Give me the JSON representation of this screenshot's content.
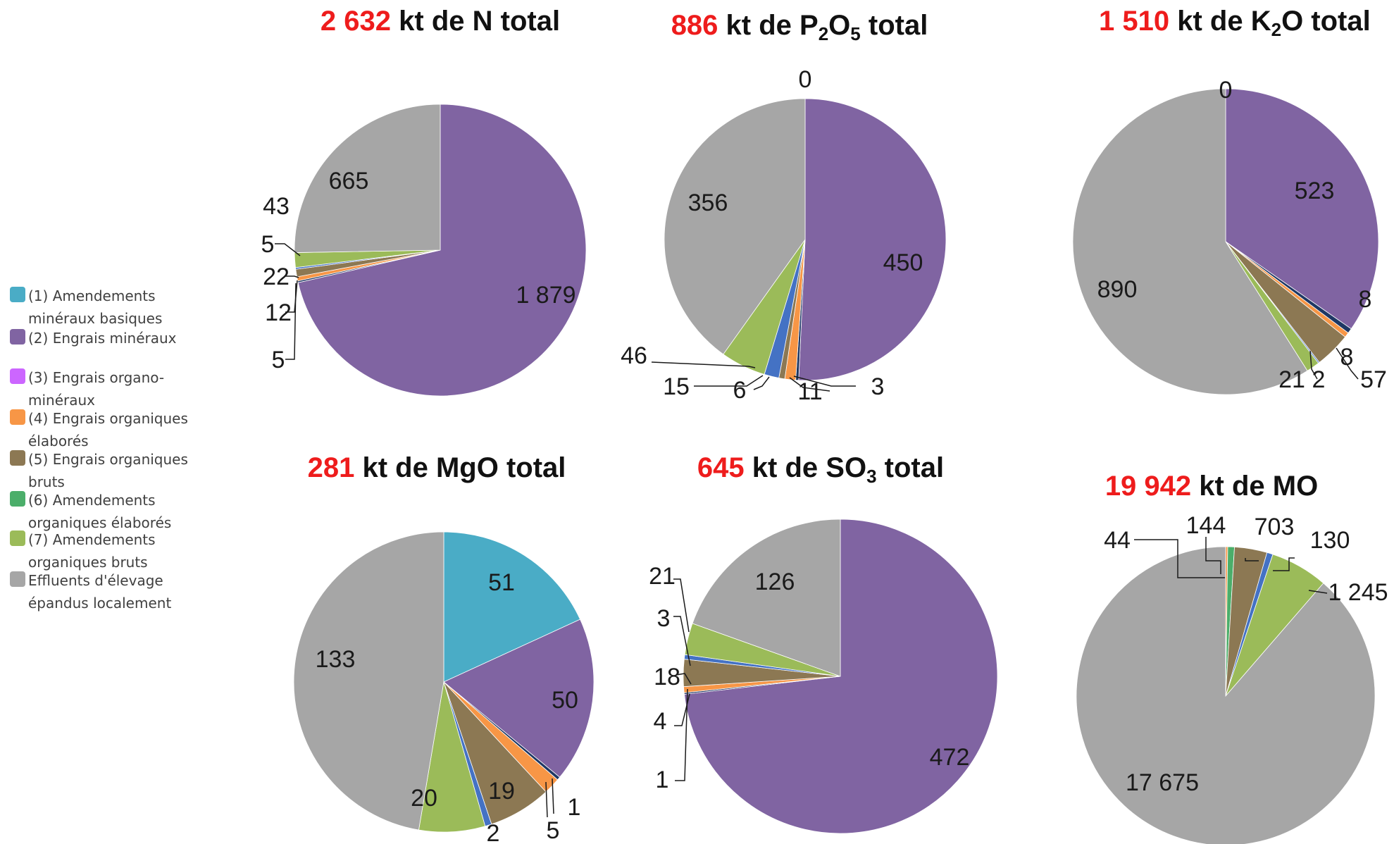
{
  "legend": {
    "items": [
      {
        "label": "(1) Amendements minéraux basiques",
        "color": "#4aacc6"
      },
      {
        "label": "(2) Engrais minéraux",
        "color": "#8064a2"
      },
      {
        "label": "(3) Engrais organo-minéraux",
        "color": "#cc66ff"
      },
      {
        "label": "(4) Engrais organiques élaborés",
        "color": "#f79646"
      },
      {
        "label": "(5) Engrais organiques bruts",
        "color": "#8c7853"
      },
      {
        "label": "(6) Amendements organiques élaborés",
        "color": "#4bae6a"
      },
      {
        "label": "(7) Amendements organiques bruts",
        "color": "#9bbb59"
      },
      {
        "label": "Effluents d'élevage épandus localement",
        "color": "#a6a6a6"
      }
    ],
    "extra_colors": [
      "#4472c4",
      "#1f3864"
    ]
  },
  "chart_data": [
    {
      "type": "pie",
      "title": {
        "value": "2 632",
        "rest": " kt de N total"
      },
      "slices": [
        {
          "label": "1 879",
          "value": 1879,
          "color": "#8064a2"
        },
        {
          "label": "5",
          "value": 5,
          "color": "#1f3864"
        },
        {
          "label": "12",
          "value": 12,
          "color": "#f79646"
        },
        {
          "label": "22",
          "value": 22,
          "color": "#8c7853"
        },
        {
          "label": "5",
          "value": 5,
          "color": "#4472c4"
        },
        {
          "label": "43",
          "value": 43,
          "color": "#9bbb59"
        },
        {
          "label": "665",
          "value": 665,
          "color": "#a6a6a6"
        }
      ]
    },
    {
      "type": "pie",
      "title": {
        "value": "886",
        "rest": " kt de P",
        "sub1": "2",
        "mid": "O",
        "sub2": "5",
        "end": " total"
      },
      "slices": [
        {
          "label": "0",
          "value": 0,
          "color": "#4aacc6"
        },
        {
          "label": "450",
          "value": 450,
          "color": "#8064a2"
        },
        {
          "label": "3",
          "value": 3,
          "color": "#1f3864"
        },
        {
          "label": "11",
          "value": 11,
          "color": "#f79646"
        },
        {
          "label": "6",
          "value": 6,
          "color": "#8c7853"
        },
        {
          "label": "15",
          "value": 15,
          "color": "#4472c4"
        },
        {
          "label": "46",
          "value": 46,
          "color": "#9bbb59"
        },
        {
          "label": "356",
          "value": 356,
          "color": "#a6a6a6"
        }
      ]
    },
    {
      "type": "pie",
      "title": {
        "value": "1 510",
        "rest": " kt de K",
        "sub1": "2",
        "mid": "O total"
      },
      "slices": [
        {
          "label": "0",
          "value": 0,
          "color": "#4aacc6"
        },
        {
          "label": "523",
          "value": 523,
          "color": "#8064a2"
        },
        {
          "label": "8",
          "value": 8,
          "color": "#1f3864"
        },
        {
          "label": "8",
          "value": 8,
          "color": "#f79646"
        },
        {
          "label": "57",
          "value": 57,
          "color": "#8c7853"
        },
        {
          "label": "2",
          "value": 2,
          "color": "#4472c4"
        },
        {
          "label": "21",
          "value": 21,
          "color": "#9bbb59"
        },
        {
          "label": "890",
          "value": 890,
          "color": "#a6a6a6"
        }
      ]
    },
    {
      "type": "pie",
      "title": {
        "value": "281",
        "rest": " kt de MgO total"
      },
      "slices": [
        {
          "label": "51",
          "value": 51,
          "color": "#4aacc6"
        },
        {
          "label": "50",
          "value": 50,
          "color": "#8064a2"
        },
        {
          "label": "1",
          "value": 1,
          "color": "#1f3864"
        },
        {
          "label": "5",
          "value": 5,
          "color": "#f79646"
        },
        {
          "label": "19",
          "value": 19,
          "color": "#8c7853"
        },
        {
          "label": "2",
          "value": 2,
          "color": "#4472c4"
        },
        {
          "label": "20",
          "value": 20,
          "color": "#9bbb59"
        },
        {
          "label": "133",
          "value": 133,
          "color": "#a6a6a6"
        }
      ]
    },
    {
      "type": "pie",
      "title": {
        "value": "645",
        "rest": " kt de SO",
        "sub1": "3",
        "mid": " total"
      },
      "slices": [
        {
          "label": "472",
          "value": 472,
          "color": "#8064a2"
        },
        {
          "label": "1",
          "value": 1,
          "color": "#1f3864"
        },
        {
          "label": "4",
          "value": 4,
          "color": "#f79646"
        },
        {
          "label": "18",
          "value": 18,
          "color": "#8c7853"
        },
        {
          "label": "3",
          "value": 3,
          "color": "#4472c4"
        },
        {
          "label": "21",
          "value": 21,
          "color": "#9bbb59"
        },
        {
          "label": "126",
          "value": 126,
          "color": "#a6a6a6"
        }
      ]
    },
    {
      "type": "pie",
      "title": {
        "value": "19 942",
        "rest": " kt de MO"
      },
      "slices": [
        {
          "label": "44",
          "value": 44,
          "color": "#f79646"
        },
        {
          "label": "144",
          "value": 144,
          "color": "#4bae6a"
        },
        {
          "label": "703",
          "value": 703,
          "color": "#8c7853"
        },
        {
          "label": "130",
          "value": 130,
          "color": "#4472c4"
        },
        {
          "label": "1 245",
          "value": 1245,
          "color": "#9bbb59"
        },
        {
          "label": "17 675",
          "value": 17675,
          "color": "#a6a6a6"
        }
      ]
    }
  ]
}
